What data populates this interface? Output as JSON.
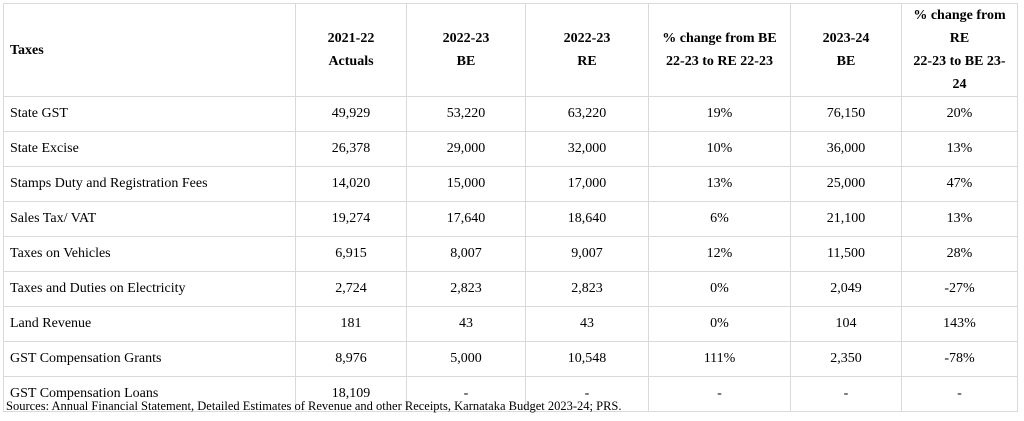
{
  "table": {
    "headers": [
      "Taxes",
      "2021-22\nActuals",
      "2022-23\nBE",
      "2022-23\nRE",
      "% change from BE\n22-23 to RE 22-23",
      "2023-24\nBE",
      "% change from RE\n22-23 to BE 23-24"
    ],
    "rows": [
      [
        "State GST",
        "49,929",
        "53,220",
        "63,220",
        "19%",
        "76,150",
        "20%"
      ],
      [
        "State Excise",
        "26,378",
        "29,000",
        "32,000",
        "10%",
        "36,000",
        "13%"
      ],
      [
        "Stamps Duty and Registration Fees",
        "14,020",
        "15,000",
        "17,000",
        "13%",
        "25,000",
        "47%"
      ],
      [
        "Sales Tax/ VAT",
        "19,274",
        "17,640",
        "18,640",
        "6%",
        "21,100",
        "13%"
      ],
      [
        "Taxes on Vehicles",
        "6,915",
        "8,007",
        "9,007",
        "12%",
        "11,500",
        "28%"
      ],
      [
        "Taxes and Duties on Electricity",
        "2,724",
        "2,823",
        "2,823",
        "0%",
        "2,049",
        "-27%"
      ],
      [
        "Land Revenue",
        "181",
        "43",
        "43",
        "0%",
        "104",
        "143%"
      ],
      [
        "GST Compensation Grants",
        "8,976",
        "5,000",
        "10,548",
        "111%",
        "2,350",
        "-78%"
      ],
      [
        "GST Compensation Loans",
        "18,109",
        "-",
        "-",
        "-",
        "-",
        "-"
      ]
    ]
  },
  "source": "Sources: Annual Financial Statement, Detailed Estimates of Revenue and other Receipts, Karnataka Budget 2023-24; PRS."
}
